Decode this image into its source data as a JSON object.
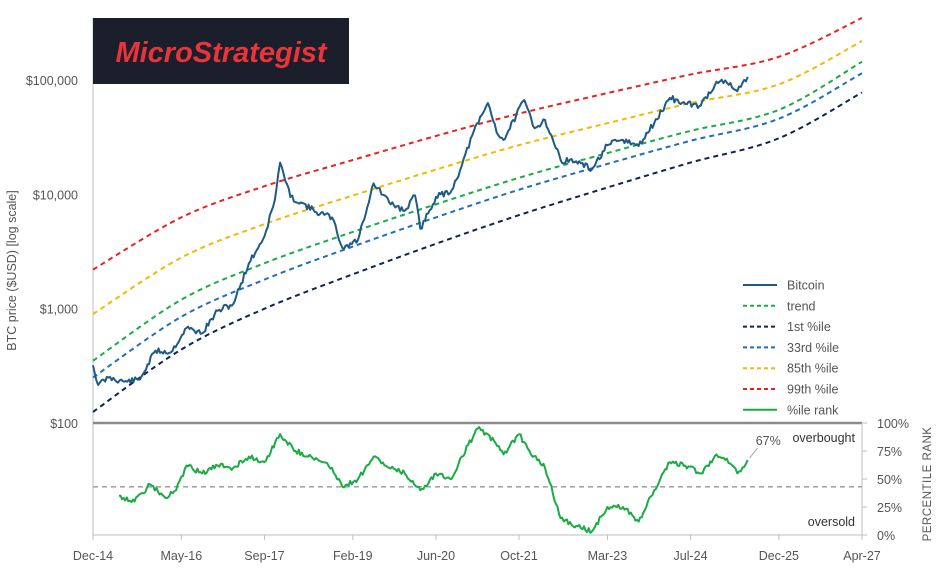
{
  "brand": {
    "logo_text": "MicroStrategist",
    "bg_color": "#1b1f2b",
    "text_color": "#e8343a"
  },
  "chart_data": {
    "type": "line",
    "y_axis_label": "BTC price ($USD) [log scale]",
    "y_scale": "log",
    "y_ticks": [
      {
        "value": 100,
        "label": "$100"
      },
      {
        "value": 1000,
        "label": "$1,000"
      },
      {
        "value": 10000,
        "label": "$10,000"
      },
      {
        "value": 100000,
        "label": "$100,000"
      }
    ],
    "x_ticks": [
      {
        "value": "2014-12",
        "label": "Dec-14"
      },
      {
        "value": "2016-05",
        "label": "May-16"
      },
      {
        "value": "2017-09",
        "label": "Sep-17"
      },
      {
        "value": "2019-02",
        "label": "Feb-19"
      },
      {
        "value": "2020-06",
        "label": "Jun-20"
      },
      {
        "value": "2021-10",
        "label": "Oct-21"
      },
      {
        "value": "2023-03",
        "label": "Mar-23"
      },
      {
        "value": "2024-07",
        "label": "Jul-24"
      },
      {
        "value": "2025-12",
        "label": "Dec-25"
      },
      {
        "value": "2027-04",
        "label": "Apr-27"
      }
    ],
    "x_range": [
      "2014-12",
      "2027-04"
    ],
    "y_range": [
      100,
      350000
    ],
    "bands": [
      {
        "name": "trend",
        "color": "#1aab44",
        "values": [
          {
            "x": "2014-12",
            "y": 350
          },
          {
            "x": "2016-05",
            "y": 1200
          },
          {
            "x": "2017-09",
            "y": 2500
          },
          {
            "x": "2019-02",
            "y": 4700
          },
          {
            "x": "2020-06",
            "y": 8200
          },
          {
            "x": "2021-10",
            "y": 14000
          },
          {
            "x": "2023-03",
            "y": 23000
          },
          {
            "x": "2024-07",
            "y": 36000
          },
          {
            "x": "2025-12",
            "y": 55000
          },
          {
            "x": "2027-04",
            "y": 145000
          }
        ]
      },
      {
        "name": "1st %ile",
        "color": "#0d2457",
        "values": [
          {
            "x": "2014-12",
            "y": 125
          },
          {
            "x": "2016-05",
            "y": 440
          },
          {
            "x": "2017-09",
            "y": 1000
          },
          {
            "x": "2019-02",
            "y": 2000
          },
          {
            "x": "2020-06",
            "y": 3700
          },
          {
            "x": "2021-10",
            "y": 6600
          },
          {
            "x": "2023-03",
            "y": 11500
          },
          {
            "x": "2024-07",
            "y": 19000
          },
          {
            "x": "2025-12",
            "y": 31000
          },
          {
            "x": "2027-04",
            "y": 78000
          }
        ]
      },
      {
        "name": "33rd %ile",
        "color": "#1f6fb8",
        "values": [
          {
            "x": "2014-12",
            "y": 250
          },
          {
            "x": "2016-05",
            "y": 850
          },
          {
            "x": "2017-09",
            "y": 1800
          },
          {
            "x": "2019-02",
            "y": 3500
          },
          {
            "x": "2020-06",
            "y": 6300
          },
          {
            "x": "2021-10",
            "y": 11000
          },
          {
            "x": "2023-03",
            "y": 18500
          },
          {
            "x": "2024-07",
            "y": 29500
          },
          {
            "x": "2025-12",
            "y": 46000
          },
          {
            "x": "2027-04",
            "y": 115000
          }
        ]
      },
      {
        "name": "85th %ile",
        "color": "#f5b800",
        "values": [
          {
            "x": "2014-12",
            "y": 900
          },
          {
            "x": "2016-05",
            "y": 2800
          },
          {
            "x": "2017-09",
            "y": 5500
          },
          {
            "x": "2019-02",
            "y": 9800
          },
          {
            "x": "2020-06",
            "y": 16500
          },
          {
            "x": "2021-10",
            "y": 27000
          },
          {
            "x": "2023-03",
            "y": 42000
          },
          {
            "x": "2024-07",
            "y": 63000
          },
          {
            "x": "2025-12",
            "y": 92000
          },
          {
            "x": "2027-04",
            "y": 220000
          }
        ]
      },
      {
        "name": "99th %ile",
        "color": "#e8231f",
        "values": [
          {
            "x": "2014-12",
            "y": 2200
          },
          {
            "x": "2016-05",
            "y": 6300
          },
          {
            "x": "2017-09",
            "y": 11800
          },
          {
            "x": "2019-02",
            "y": 20000
          },
          {
            "x": "2020-06",
            "y": 32500
          },
          {
            "x": "2021-10",
            "y": 51000
          },
          {
            "x": "2023-03",
            "y": 77000
          },
          {
            "x": "2024-07",
            "y": 112000
          },
          {
            "x": "2025-12",
            "y": 160000
          },
          {
            "x": "2027-04",
            "y": 350000
          }
        ]
      }
    ],
    "price_series": {
      "name": "Bitcoin",
      "color": "#1f5a85",
      "values": [
        {
          "x": "2014-12",
          "y": 320
        },
        {
          "x": "2015-01",
          "y": 215
        },
        {
          "x": "2015-03",
          "y": 250
        },
        {
          "x": "2015-06",
          "y": 230
        },
        {
          "x": "2015-09",
          "y": 240
        },
        {
          "x": "2015-12",
          "y": 430
        },
        {
          "x": "2016-03",
          "y": 415
        },
        {
          "x": "2016-06",
          "y": 680
        },
        {
          "x": "2016-09",
          "y": 610
        },
        {
          "x": "2016-12",
          "y": 960
        },
        {
          "x": "2017-03",
          "y": 1100
        },
        {
          "x": "2017-06",
          "y": 2500
        },
        {
          "x": "2017-09",
          "y": 4300
        },
        {
          "x": "2017-11",
          "y": 9000
        },
        {
          "x": "2017-12",
          "y": 19000
        },
        {
          "x": "2018-02",
          "y": 9500
        },
        {
          "x": "2018-04",
          "y": 8500
        },
        {
          "x": "2018-07",
          "y": 7000
        },
        {
          "x": "2018-10",
          "y": 6300
        },
        {
          "x": "2018-12",
          "y": 3400
        },
        {
          "x": "2019-03",
          "y": 4000
        },
        {
          "x": "2019-06",
          "y": 12500
        },
        {
          "x": "2019-09",
          "y": 8500
        },
        {
          "x": "2019-12",
          "y": 7200
        },
        {
          "x": "2020-02",
          "y": 9800
        },
        {
          "x": "2020-03",
          "y": 5000
        },
        {
          "x": "2020-06",
          "y": 9500
        },
        {
          "x": "2020-09",
          "y": 10800
        },
        {
          "x": "2020-11",
          "y": 18000
        },
        {
          "x": "2021-01",
          "y": 33000
        },
        {
          "x": "2021-04",
          "y": 63000
        },
        {
          "x": "2021-06",
          "y": 33000
        },
        {
          "x": "2021-07",
          "y": 30000
        },
        {
          "x": "2021-11",
          "y": 67000
        },
        {
          "x": "2022-01",
          "y": 38000
        },
        {
          "x": "2022-03",
          "y": 45000
        },
        {
          "x": "2022-06",
          "y": 20000
        },
        {
          "x": "2022-09",
          "y": 19500
        },
        {
          "x": "2022-12",
          "y": 16500
        },
        {
          "x": "2023-03",
          "y": 27000
        },
        {
          "x": "2023-06",
          "y": 30000
        },
        {
          "x": "2023-09",
          "y": 26500
        },
        {
          "x": "2023-12",
          "y": 42000
        },
        {
          "x": "2024-03",
          "y": 70000
        },
        {
          "x": "2024-06",
          "y": 62000
        },
        {
          "x": "2024-09",
          "y": 60000
        },
        {
          "x": "2024-12",
          "y": 97000
        },
        {
          "x": "2025-02",
          "y": 95000
        },
        {
          "x": "2025-04",
          "y": 80000
        },
        {
          "x": "2025-06",
          "y": 107000
        }
      ]
    },
    "percentile_panel": {
      "axis_label": "PERCENTILE RANK",
      "y_range": [
        0,
        100
      ],
      "y_ticks": [
        {
          "value": 0,
          "label": "0%"
        },
        {
          "value": 25,
          "label": "25%"
        },
        {
          "value": 50,
          "label": "50%"
        },
        {
          "value": 75,
          "label": "75%"
        },
        {
          "value": 100,
          "label": "100%"
        }
      ],
      "reference_line": 43,
      "series": {
        "name": "%ile rank",
        "color": "#1aab44",
        "values": [
          {
            "x": "2015-05",
            "y": 35
          },
          {
            "x": "2015-08",
            "y": 30
          },
          {
            "x": "2015-11",
            "y": 45
          },
          {
            "x": "2016-02",
            "y": 33
          },
          {
            "x": "2016-04",
            "y": 40
          },
          {
            "x": "2016-06",
            "y": 62
          },
          {
            "x": "2016-09",
            "y": 55
          },
          {
            "x": "2016-12",
            "y": 62
          },
          {
            "x": "2017-03",
            "y": 60
          },
          {
            "x": "2017-06",
            "y": 70
          },
          {
            "x": "2017-09",
            "y": 65
          },
          {
            "x": "2017-12",
            "y": 90
          },
          {
            "x": "2018-03",
            "y": 75
          },
          {
            "x": "2018-06",
            "y": 70
          },
          {
            "x": "2018-10",
            "y": 60
          },
          {
            "x": "2018-12",
            "y": 43
          },
          {
            "x": "2019-03",
            "y": 50
          },
          {
            "x": "2019-06",
            "y": 70
          },
          {
            "x": "2019-09",
            "y": 60
          },
          {
            "x": "2019-12",
            "y": 55
          },
          {
            "x": "2020-03",
            "y": 40
          },
          {
            "x": "2020-06",
            "y": 55
          },
          {
            "x": "2020-09",
            "y": 50
          },
          {
            "x": "2020-11",
            "y": 70
          },
          {
            "x": "2021-02",
            "y": 95
          },
          {
            "x": "2021-04",
            "y": 90
          },
          {
            "x": "2021-07",
            "y": 72
          },
          {
            "x": "2021-10",
            "y": 90
          },
          {
            "x": "2021-12",
            "y": 75
          },
          {
            "x": "2022-03",
            "y": 60
          },
          {
            "x": "2022-06",
            "y": 15
          },
          {
            "x": "2022-09",
            "y": 8
          },
          {
            "x": "2022-12",
            "y": 3
          },
          {
            "x": "2023-03",
            "y": 25
          },
          {
            "x": "2023-06",
            "y": 25
          },
          {
            "x": "2023-09",
            "y": 12
          },
          {
            "x": "2023-12",
            "y": 40
          },
          {
            "x": "2024-03",
            "y": 65
          },
          {
            "x": "2024-06",
            "y": 62
          },
          {
            "x": "2024-09",
            "y": 55
          },
          {
            "x": "2024-12",
            "y": 72
          },
          {
            "x": "2025-02",
            "y": 68
          },
          {
            "x": "2025-04",
            "y": 55
          },
          {
            "x": "2025-06",
            "y": 67
          }
        ]
      },
      "current_label": "67%",
      "zone_labels": {
        "top": "overbought",
        "bottom": "oversold"
      }
    },
    "legend": [
      {
        "name": "Bitcoin",
        "color": "#1f5a85",
        "style": "solid"
      },
      {
        "name": "trend",
        "color": "#1aab44",
        "style": "dashed"
      },
      {
        "name": "1st %ile",
        "color": "#0d2457",
        "style": "dashed"
      },
      {
        "name": "33rd %ile",
        "color": "#1f6fb8",
        "style": "dashed"
      },
      {
        "name": "85th %ile",
        "color": "#f5b800",
        "style": "dashed"
      },
      {
        "name": "99th %ile",
        "color": "#e8231f",
        "style": "dashed"
      },
      {
        "name": "%ile rank",
        "color": "#1aab44",
        "style": "solid"
      }
    ],
    "legend_position": "bottom-right",
    "grid": false
  }
}
